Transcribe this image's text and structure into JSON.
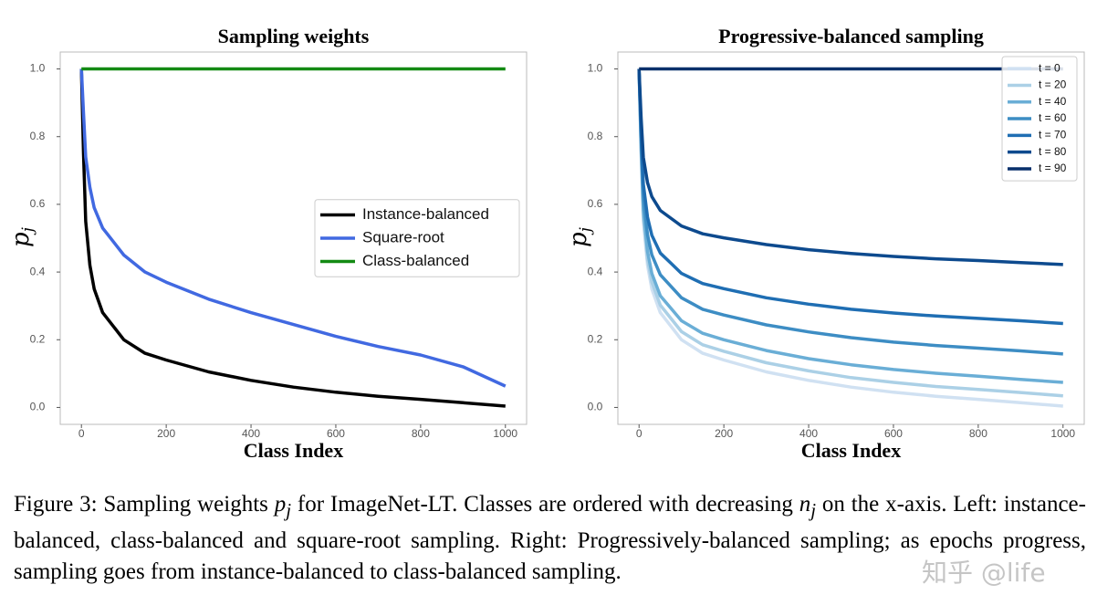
{
  "chart_data": [
    {
      "type": "line",
      "title": "Sampling weights",
      "xlabel": "Class Index",
      "ylabel": "p",
      "ylabel_sub": "j",
      "x": [
        0,
        5,
        10,
        20,
        30,
        50,
        75,
        100,
        150,
        200,
        300,
        400,
        500,
        600,
        700,
        800,
        900,
        1000
      ],
      "xlim": [
        -50,
        1050
      ],
      "xticks": [
        0,
        200,
        400,
        600,
        800,
        1000
      ],
      "ylim": [
        -0.05,
        1.05
      ],
      "yticks": [
        {
          "value": 0,
          "label": "0.0"
        },
        0.2,
        0.4,
        0.6,
        0.8,
        {
          "value": 1,
          "label": "1.0"
        }
      ],
      "grid": false,
      "legend": "center right",
      "series": [
        {
          "name": "Instance-balanced",
          "color": "#000000",
          "values": [
            1,
            0.75,
            0.55,
            0.42,
            0.35,
            0.28,
            0.24,
            0.2,
            0.16,
            0.14,
            0.105,
            0.08,
            0.06,
            0.045,
            0.033,
            0.024,
            0.014,
            0.004
          ]
        },
        {
          "name": "Square-root",
          "color": "#4169e1",
          "values": [
            1,
            0.87,
            0.74,
            0.65,
            0.59,
            0.53,
            0.49,
            0.45,
            0.4,
            0.37,
            0.32,
            0.28,
            0.245,
            0.21,
            0.18,
            0.155,
            0.12,
            0.063
          ]
        },
        {
          "name": "Class-balanced",
          "color": "#138a13",
          "values": [
            1,
            1,
            1,
            1,
            1,
            1,
            1,
            1,
            1,
            1,
            1,
            1,
            1,
            1,
            1,
            1,
            1,
            1
          ]
        }
      ]
    },
    {
      "type": "line",
      "title": "Progressive-balanced sampling",
      "xlabel": "Class Index",
      "ylabel": "p",
      "ylabel_sub": "j",
      "x": [
        0,
        5,
        10,
        20,
        30,
        50,
        75,
        100,
        150,
        200,
        300,
        400,
        500,
        600,
        700,
        800,
        900,
        1000
      ],
      "xlim": [
        -50,
        1050
      ],
      "xticks": [
        0,
        200,
        400,
        600,
        800,
        1000
      ],
      "ylim": [
        -0.05,
        1.05
      ],
      "yticks": [
        {
          "value": 0,
          "label": "0.0"
        },
        0.2,
        0.4,
        0.6,
        0.8,
        {
          "value": 1,
          "label": "1.0"
        }
      ],
      "grid": false,
      "legend": "upper right",
      "series": [
        {
          "name": "t = 0",
          "color": "#d0e1f2",
          "values": [
            1,
            0.75,
            0.55,
            0.42,
            0.35,
            0.28,
            0.24,
            0.2,
            0.16,
            0.14,
            0.105,
            0.08,
            0.06,
            0.045,
            0.033,
            0.024,
            0.014,
            0.004
          ]
        },
        {
          "name": "t = 20",
          "color": "#abd0e6",
          "values": [
            1,
            0.758,
            0.564,
            0.437,
            0.37,
            0.302,
            0.263,
            0.224,
            0.185,
            0.166,
            0.132,
            0.108,
            0.088,
            0.074,
            0.062,
            0.053,
            0.044,
            0.034
          ]
        },
        {
          "name": "t = 40",
          "color": "#6aaed6",
          "values": [
            1,
            0.768,
            0.582,
            0.461,
            0.396,
            0.33,
            0.293,
            0.256,
            0.219,
            0.2,
            0.168,
            0.144,
            0.126,
            0.112,
            0.101,
            0.092,
            0.083,
            0.074
          ]
        },
        {
          "name": "t = 60",
          "color": "#3d8dc4",
          "values": [
            1,
            0.789,
            0.62,
            0.51,
            0.451,
            0.392,
            0.358,
            0.324,
            0.29,
            0.273,
            0.244,
            0.223,
            0.206,
            0.193,
            0.183,
            0.175,
            0.167,
            0.158
          ]
        },
        {
          "name": "t = 70",
          "color": "#1f6eb3",
          "values": [
            1,
            0.811,
            0.66,
            0.562,
            0.509,
            0.456,
            0.426,
            0.396,
            0.366,
            0.351,
            0.324,
            0.305,
            0.29,
            0.279,
            0.27,
            0.263,
            0.256,
            0.248
          ]
        },
        {
          "name": "t = 80",
          "color": "#0d4a8e",
          "values": [
            1,
            0.855,
            0.739,
            0.664,
            0.623,
            0.582,
            0.559,
            0.536,
            0.513,
            0.501,
            0.481,
            0.466,
            0.455,
            0.446,
            0.439,
            0.434,
            0.428,
            0.422
          ]
        },
        {
          "name": "t = 90",
          "color": "#08306b",
          "values": [
            1,
            1,
            1,
            1,
            1,
            1,
            1,
            1,
            1,
            1,
            1,
            1,
            1,
            1,
            1,
            1,
            1,
            1
          ]
        }
      ]
    }
  ],
  "caption": [
    "Figure 3:  Sampling weights ",
    "p",
    "j",
    " for ImageNet-LT. Classes are ordered with decreasing ",
    "n",
    "j",
    " on the x-axis.  Left: instance-balanced, class-balanced and square-root sampling.  Right: Progressively-balanced sampling; as epochs progress, sampling goes from instance-balanced to class-balanced sampling."
  ],
  "watermark": "知乎 @life"
}
